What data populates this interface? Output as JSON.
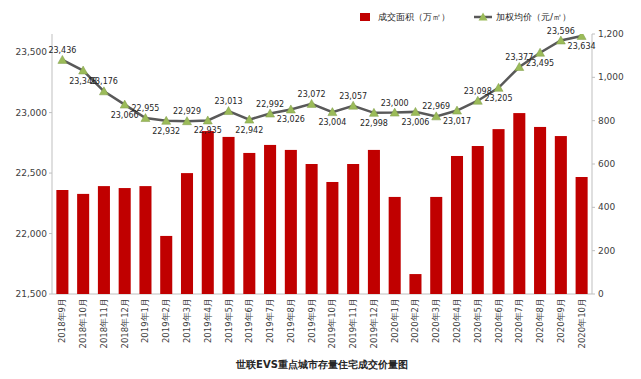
{
  "chart_data": {
    "type": "bar",
    "title": "世联EVS重点城市存量住宅成交价量图",
    "categories": [
      "2018年9月",
      "2018年10月",
      "2018年11月",
      "2018年12月",
      "2019年1月",
      "2019年2月",
      "2019年3月",
      "2019年4月",
      "2019年5月",
      "2019年6月",
      "2019年7月",
      "2019年8月",
      "2019年9月",
      "2019年10月",
      "2019年11月",
      "2019年12月",
      "2020年1月",
      "2020年2月",
      "2020年3月",
      "2020年4月",
      "2020年5月",
      "2020年6月",
      "2020年7月",
      "2020年8月",
      "2020年9月",
      "2020年10月"
    ],
    "series": [
      {
        "name": "成交面积（万㎡）",
        "type": "bar",
        "color": "#c00000",
        "axis": "y2",
        "values": [
          480,
          462,
          498,
          489,
          498,
          268,
          558,
          752,
          725,
          651,
          688,
          665,
          600,
          517,
          600,
          665,
          448,
          92,
          448,
          637,
          683,
          761,
          835,
          771,
          729,
          540
        ]
      },
      {
        "name": "加权均价（元/㎡）",
        "type": "line",
        "color": "#595959",
        "marker": "triangle",
        "data_labels": true,
        "values": [
          23436,
          23348,
          23176,
          23066,
          22955,
          22932,
          22929,
          22935,
          23013,
          22942,
          22992,
          23026,
          23072,
          23004,
          23057,
          22998,
          23000,
          23006,
          22969,
          23017,
          23098,
          23205,
          23377,
          23495,
          23596,
          23634
        ],
        "value_labels": [
          "23,436",
          "23,348",
          "23,176",
          "23,066",
          "22,955",
          "22,932",
          "22,929",
          "22,935",
          "23,013",
          "22,942",
          "22,992",
          "23,026",
          "23,072",
          "23,004",
          "23,057",
          "22,998",
          "23,000",
          "23,006",
          "22,969",
          "23,017",
          "23,098",
          "23,205",
          "23,377",
          "23,495",
          "23,596",
          "23,634"
        ]
      }
    ],
    "ylim": [
      21500,
      23650
    ],
    "yticks": [
      {
        "value": 21500,
        "label": "21,500"
      },
      {
        "value": 22000,
        "label": "22,000"
      },
      {
        "value": 22500,
        "label": "22,500"
      },
      {
        "value": 23000,
        "label": "23,000"
      },
      {
        "value": 23500,
        "label": "23,500"
      }
    ],
    "y2lim": [
      0,
      1200
    ],
    "y2ticks": [
      0,
      200,
      400,
      600,
      800,
      {
        "value": 1000,
        "label": "1,000"
      },
      {
        "value": 1200,
        "label": "1,200"
      }
    ],
    "grid": false,
    "legend": "top"
  }
}
